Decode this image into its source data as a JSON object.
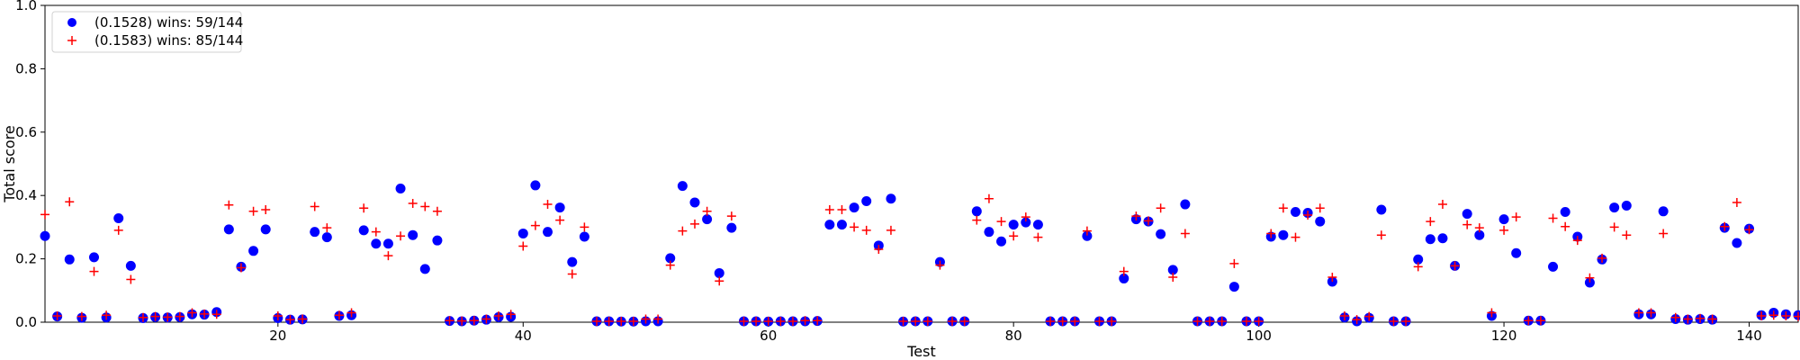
{
  "chart_data": {
    "type": "scatter",
    "title": "",
    "xlabel": "Test",
    "ylabel": "Total score",
    "xlim": [
      1,
      144
    ],
    "ylim": [
      0.0,
      1.0
    ],
    "xticks": [
      20,
      40,
      60,
      80,
      100,
      120,
      140
    ],
    "xtick_labels": [
      "20",
      "40",
      "60",
      "80",
      "100",
      "120",
      "140"
    ],
    "yticks": [
      0.0,
      0.2,
      0.4,
      0.6,
      0.8,
      1.0
    ],
    "ytick_labels": [
      "0.0",
      "0.2",
      "0.4",
      "0.6",
      "0.8",
      "1.0"
    ],
    "grid": false,
    "legend_position": "upper-left",
    "series": [
      {
        "name": "(0.1528) wins: 59/144",
        "marker": "circle",
        "color": "#0000ff",
        "x": [
          1,
          2,
          3,
          4,
          5,
          6,
          7,
          8,
          9,
          10,
          11,
          12,
          13,
          14,
          15,
          16,
          17,
          18,
          19,
          20,
          21,
          22,
          23,
          24,
          25,
          26,
          27,
          28,
          29,
          30,
          31,
          32,
          33,
          34,
          35,
          36,
          37,
          38,
          39,
          40,
          41,
          42,
          43,
          44,
          45,
          46,
          47,
          48,
          49,
          50,
          51,
          52,
          53,
          54,
          55,
          56,
          57,
          58,
          59,
          60,
          61,
          62,
          63,
          64,
          65,
          66,
          67,
          68,
          69,
          70,
          71,
          72,
          73,
          74,
          75,
          76,
          77,
          78,
          79,
          80,
          81,
          82,
          83,
          84,
          85,
          86,
          87,
          88,
          89,
          90,
          91,
          92,
          93,
          94,
          95,
          96,
          97,
          98,
          99,
          100,
          101,
          102,
          103,
          104,
          105,
          106,
          107,
          108,
          109,
          110,
          111,
          112,
          113,
          114,
          115,
          116,
          117,
          118,
          119,
          120,
          121,
          122,
          123,
          124,
          125,
          126,
          127,
          128,
          129,
          130,
          131,
          132,
          133,
          134,
          135,
          136,
          137,
          138,
          139,
          140,
          141,
          142,
          143,
          144
        ],
        "y": [
          0.272,
          0.018,
          0.198,
          0.014,
          0.205,
          0.015,
          0.328,
          0.178,
          0.013,
          0.016,
          0.015,
          0.016,
          0.025,
          0.024,
          0.032,
          0.293,
          0.175,
          0.225,
          0.293,
          0.013,
          0.008,
          0.009,
          0.285,
          0.268,
          0.02,
          0.022,
          0.29,
          0.248,
          0.248,
          0.422,
          0.275,
          0.168,
          0.258,
          0.004,
          0.003,
          0.005,
          0.008,
          0.016,
          0.017,
          0.28,
          0.432,
          0.285,
          0.362,
          0.19,
          0.27,
          0.003,
          0.003,
          0.002,
          0.002,
          0.003,
          0.003,
          0.202,
          0.43,
          0.378,
          0.325,
          0.155,
          0.298,
          0.003,
          0.003,
          0.002,
          0.003,
          0.003,
          0.003,
          0.004,
          0.308,
          0.308,
          0.362,
          0.382,
          0.242,
          0.39,
          0.002,
          0.003,
          0.003,
          0.19,
          0.003,
          0.003,
          0.35,
          0.285,
          0.255,
          0.308,
          0.315,
          0.308,
          0.003,
          0.003,
          0.003,
          0.272,
          0.003,
          0.003,
          0.138,
          0.325,
          0.318,
          0.278,
          0.165,
          0.372,
          0.003,
          0.003,
          0.003,
          0.112,
          0.003,
          0.003,
          0.27,
          0.275,
          0.348,
          0.345,
          0.318,
          0.128,
          0.015,
          0.003,
          0.014,
          0.355,
          0.003,
          0.003,
          0.198,
          0.262,
          0.265,
          0.178,
          0.342,
          0.275,
          0.02,
          0.325,
          0.218,
          0.005,
          0.005,
          0.175,
          0.348,
          0.27,
          0.125,
          0.198,
          0.362,
          0.368,
          0.025,
          0.025,
          0.35,
          0.01,
          0.008,
          0.01,
          0.008,
          0.298,
          0.25,
          0.295,
          0.022,
          0.03,
          0.025,
          0.022
        ]
      },
      {
        "name": "(0.1583) wins: 85/144",
        "marker": "plus",
        "color": "#ff0000",
        "x": [
          1,
          2,
          3,
          4,
          5,
          6,
          7,
          8,
          9,
          10,
          11,
          12,
          13,
          14,
          15,
          16,
          17,
          18,
          19,
          20,
          21,
          22,
          23,
          24,
          25,
          26,
          27,
          28,
          29,
          30,
          31,
          32,
          33,
          34,
          35,
          36,
          37,
          38,
          39,
          40,
          41,
          42,
          43,
          44,
          45,
          46,
          47,
          48,
          49,
          50,
          51,
          52,
          53,
          54,
          55,
          56,
          57,
          58,
          59,
          60,
          61,
          62,
          63,
          64,
          65,
          66,
          67,
          68,
          69,
          70,
          71,
          72,
          73,
          74,
          75,
          76,
          77,
          78,
          79,
          80,
          81,
          82,
          83,
          84,
          85,
          86,
          87,
          88,
          89,
          90,
          91,
          92,
          93,
          94,
          95,
          96,
          97,
          98,
          99,
          100,
          101,
          102,
          103,
          104,
          105,
          106,
          107,
          108,
          109,
          110,
          111,
          112,
          113,
          114,
          115,
          116,
          117,
          118,
          119,
          120,
          121,
          122,
          123,
          124,
          125,
          126,
          127,
          128,
          129,
          130,
          131,
          132,
          133,
          134,
          135,
          136,
          137,
          138,
          139,
          140,
          141,
          142,
          143,
          144
        ],
        "y": [
          0.34,
          0.02,
          0.38,
          0.018,
          0.16,
          0.022,
          0.29,
          0.135,
          0.015,
          0.018,
          0.016,
          0.018,
          0.03,
          0.026,
          0.025,
          0.37,
          0.172,
          0.35,
          0.355,
          0.02,
          0.008,
          0.01,
          0.365,
          0.298,
          0.022,
          0.03,
          0.36,
          0.285,
          0.21,
          0.272,
          0.375,
          0.365,
          0.35,
          0.005,
          0.004,
          0.005,
          0.01,
          0.02,
          0.025,
          0.24,
          0.305,
          0.372,
          0.322,
          0.152,
          0.3,
          0.003,
          0.003,
          0.003,
          0.003,
          0.01,
          0.01,
          0.18,
          0.288,
          0.31,
          0.35,
          0.13,
          0.335,
          0.003,
          0.003,
          0.003,
          0.003,
          0.003,
          0.005,
          0.005,
          0.355,
          0.355,
          0.3,
          0.29,
          0.23,
          0.29,
          0.003,
          0.003,
          0.003,
          0.18,
          0.003,
          0.003,
          0.322,
          0.39,
          0.318,
          0.272,
          0.332,
          0.268,
          0.003,
          0.003,
          0.003,
          0.288,
          0.003,
          0.003,
          0.16,
          0.335,
          0.32,
          0.36,
          0.142,
          0.28,
          0.003,
          0.003,
          0.003,
          0.185,
          0.003,
          0.003,
          0.28,
          0.36,
          0.268,
          0.338,
          0.36,
          0.142,
          0.02,
          0.008,
          0.018,
          0.275,
          0.003,
          0.003,
          0.175,
          0.318,
          0.372,
          0.178,
          0.308,
          0.298,
          0.03,
          0.29,
          0.332,
          0.005,
          0.005,
          0.328,
          0.302,
          0.258,
          0.14,
          0.202,
          0.3,
          0.275,
          0.03,
          0.03,
          0.28,
          0.015,
          0.01,
          0.012,
          0.01,
          0.302,
          0.378,
          0.292,
          0.02,
          0.022,
          0.02,
          0.018
        ]
      }
    ]
  }
}
